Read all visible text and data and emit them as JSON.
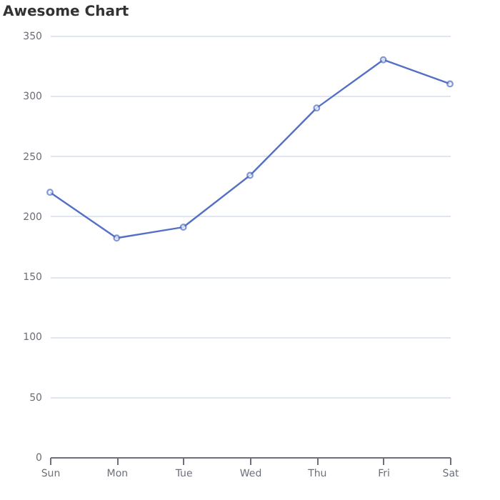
{
  "chart_data": {
    "type": "line",
    "title": "Awesome Chart",
    "categories": [
      "Sun",
      "Mon",
      "Tue",
      "Wed",
      "Thu",
      "Fri",
      "Sat"
    ],
    "series": [
      {
        "color": "#5470c6",
        "values": [
          220,
          182,
          191,
          234,
          290,
          330,
          310
        ]
      }
    ],
    "ylim": [
      0,
      350
    ],
    "yticks": [
      0,
      50,
      100,
      150,
      200,
      250,
      300,
      350
    ],
    "grid": "y",
    "marker": "circle",
    "line_style": "solid"
  }
}
